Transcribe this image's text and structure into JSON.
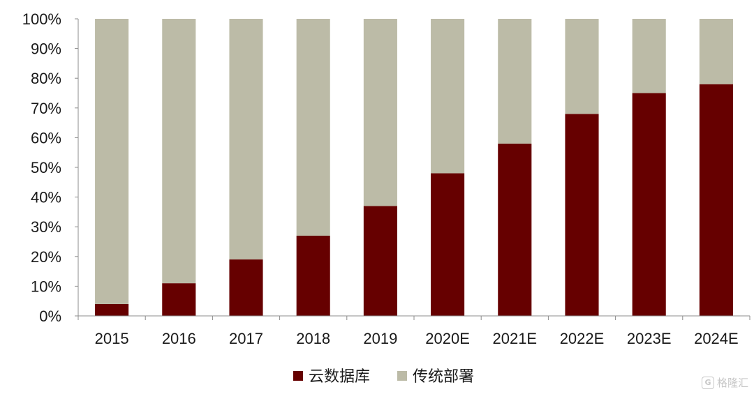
{
  "chart_data": {
    "type": "bar",
    "stacked": true,
    "categories": [
      "2015",
      "2016",
      "2017",
      "2018",
      "2019",
      "2020E",
      "2021E",
      "2022E",
      "2023E",
      "2024E"
    ],
    "series": [
      {
        "name": "云数据库",
        "color": "#660000",
        "values": [
          4,
          11,
          19,
          27,
          37,
          48,
          58,
          68,
          75,
          78
        ]
      },
      {
        "name": "传统部署",
        "color": "#bcbba7",
        "values": [
          96,
          89,
          81,
          73,
          63,
          52,
          42,
          32,
          25,
          22
        ]
      }
    ],
    "ylim": [
      0,
      100
    ],
    "yticks": [
      "0%",
      "10%",
      "20%",
      "30%",
      "40%",
      "50%",
      "60%",
      "70%",
      "80%",
      "90%",
      "100%"
    ],
    "grid": false,
    "legend_position": "bottom"
  },
  "watermark": {
    "logo_icon": "gelonghui-logo-icon",
    "logo_glyph": "G",
    "text": "格隆汇"
  }
}
